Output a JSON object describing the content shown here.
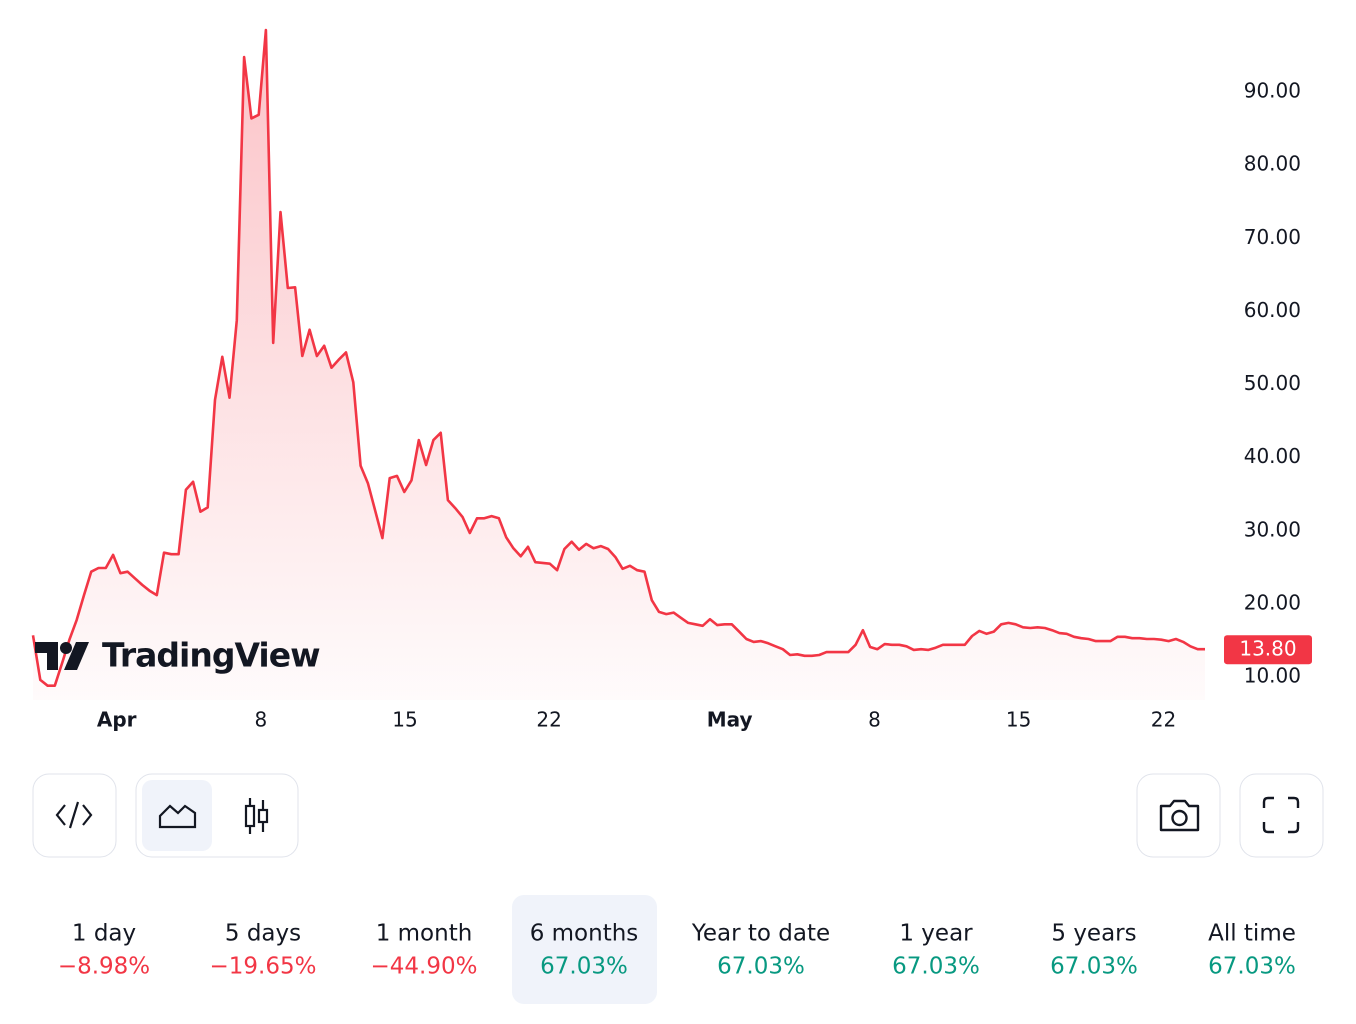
{
  "chart_data": {
    "type": "area",
    "logo": "TradingView",
    "line_color": "#f23645",
    "values": [
      15.7,
      9.6,
      8.8,
      8.8,
      11.9,
      15.1,
      17.8,
      21.2,
      24.4,
      24.9,
      24.9,
      26.7,
      24.2,
      24.4,
      23.5,
      22.6,
      21.8,
      21.2,
      27.0,
      26.8,
      26.8,
      35.6,
      36.7,
      32.6,
      33.2,
      47.9,
      53.8,
      48.2,
      58.8,
      94.8,
      86.4,
      86.9,
      98.5,
      55.7,
      73.6,
      63.2,
      63.3,
      53.9,
      57.5,
      53.9,
      55.3,
      52.3,
      53.4,
      54.4,
      50.3,
      38.9,
      36.5,
      32.8,
      29.0,
      37.2,
      37.5,
      35.3,
      36.9,
      42.4,
      39.0,
      42.4,
      43.4,
      34.2,
      33.1,
      31.9,
      29.7,
      31.7,
      31.7,
      32.0,
      31.7,
      29.1,
      27.6,
      26.5,
      27.8,
      25.7,
      25.6,
      25.5,
      24.6,
      27.5,
      28.5,
      27.4,
      28.2,
      27.6,
      27.9,
      27.5,
      26.4,
      24.8,
      25.2,
      24.6,
      24.4,
      20.5,
      18.9,
      18.6,
      18.8,
      18.1,
      17.4,
      17.2,
      17.0,
      17.9,
      17.1,
      17.2,
      17.2,
      16.2,
      15.2,
      14.8,
      14.9,
      14.6,
      14.2,
      13.8,
      13.0,
      13.1,
      12.9,
      12.9,
      13.0,
      13.4,
      13.4,
      13.4,
      13.4,
      14.4,
      16.4,
      14.1,
      13.8,
      14.5,
      14.4,
      14.4,
      14.2,
      13.7,
      13.8,
      13.7,
      14.0,
      14.4,
      14.4,
      14.4,
      14.4,
      15.6,
      16.3,
      15.9,
      16.2,
      17.2,
      17.4,
      17.2,
      16.8,
      16.7,
      16.8,
      16.7,
      16.4,
      16.0,
      15.9,
      15.5,
      15.3,
      15.2,
      14.9,
      14.9,
      14.9,
      15.5,
      15.5,
      15.3,
      15.3,
      15.2,
      15.2,
      15.1,
      14.9,
      15.2,
      14.8,
      14.2,
      13.8,
      13.8
    ],
    "xticks": [
      {
        "value": 11.5,
        "label": "Apr"
      },
      {
        "value": 31.3,
        "label": "8"
      },
      {
        "value": 51.1,
        "label": "15"
      },
      {
        "value": 70.9,
        "label": "22"
      },
      {
        "value": 95.7,
        "label": "May"
      },
      {
        "value": 115.6,
        "label": "8"
      },
      {
        "value": 135.4,
        "label": "15"
      },
      {
        "value": 155.3,
        "label": "22"
      }
    ],
    "ylim": [
      6.85,
      102.6
    ],
    "yticks": [
      {
        "value": 10,
        "label": "10.00"
      },
      {
        "value": 20,
        "label": "20.00"
      },
      {
        "value": 30,
        "label": "30.00"
      },
      {
        "value": 40,
        "label": "40.00"
      },
      {
        "value": 50,
        "label": "50.00"
      },
      {
        "value": 60,
        "label": "60.00"
      },
      {
        "value": 70,
        "label": "70.00"
      },
      {
        "value": 80,
        "label": "80.00"
      },
      {
        "value": 90,
        "label": "90.00"
      }
    ],
    "last_price": {
      "value": 13.8,
      "label": "13.80"
    }
  },
  "periods": [
    {
      "label": "1 day",
      "change": "−8.98%",
      "up": false
    },
    {
      "label": "5 days",
      "change": "−19.65%",
      "up": false
    },
    {
      "label": "1 month",
      "change": "−44.90%",
      "up": false
    },
    {
      "label": "6 months",
      "change": "67.03%",
      "up": true
    },
    {
      "label": "Year to date",
      "change": "67.03%",
      "up": true
    },
    {
      "label": "1 year",
      "change": "67.03%",
      "up": true
    },
    {
      "label": "5 years",
      "change": "67.03%",
      "up": true
    },
    {
      "label": "All time",
      "change": "67.03%",
      "up": true
    }
  ],
  "selected_period": 3
}
